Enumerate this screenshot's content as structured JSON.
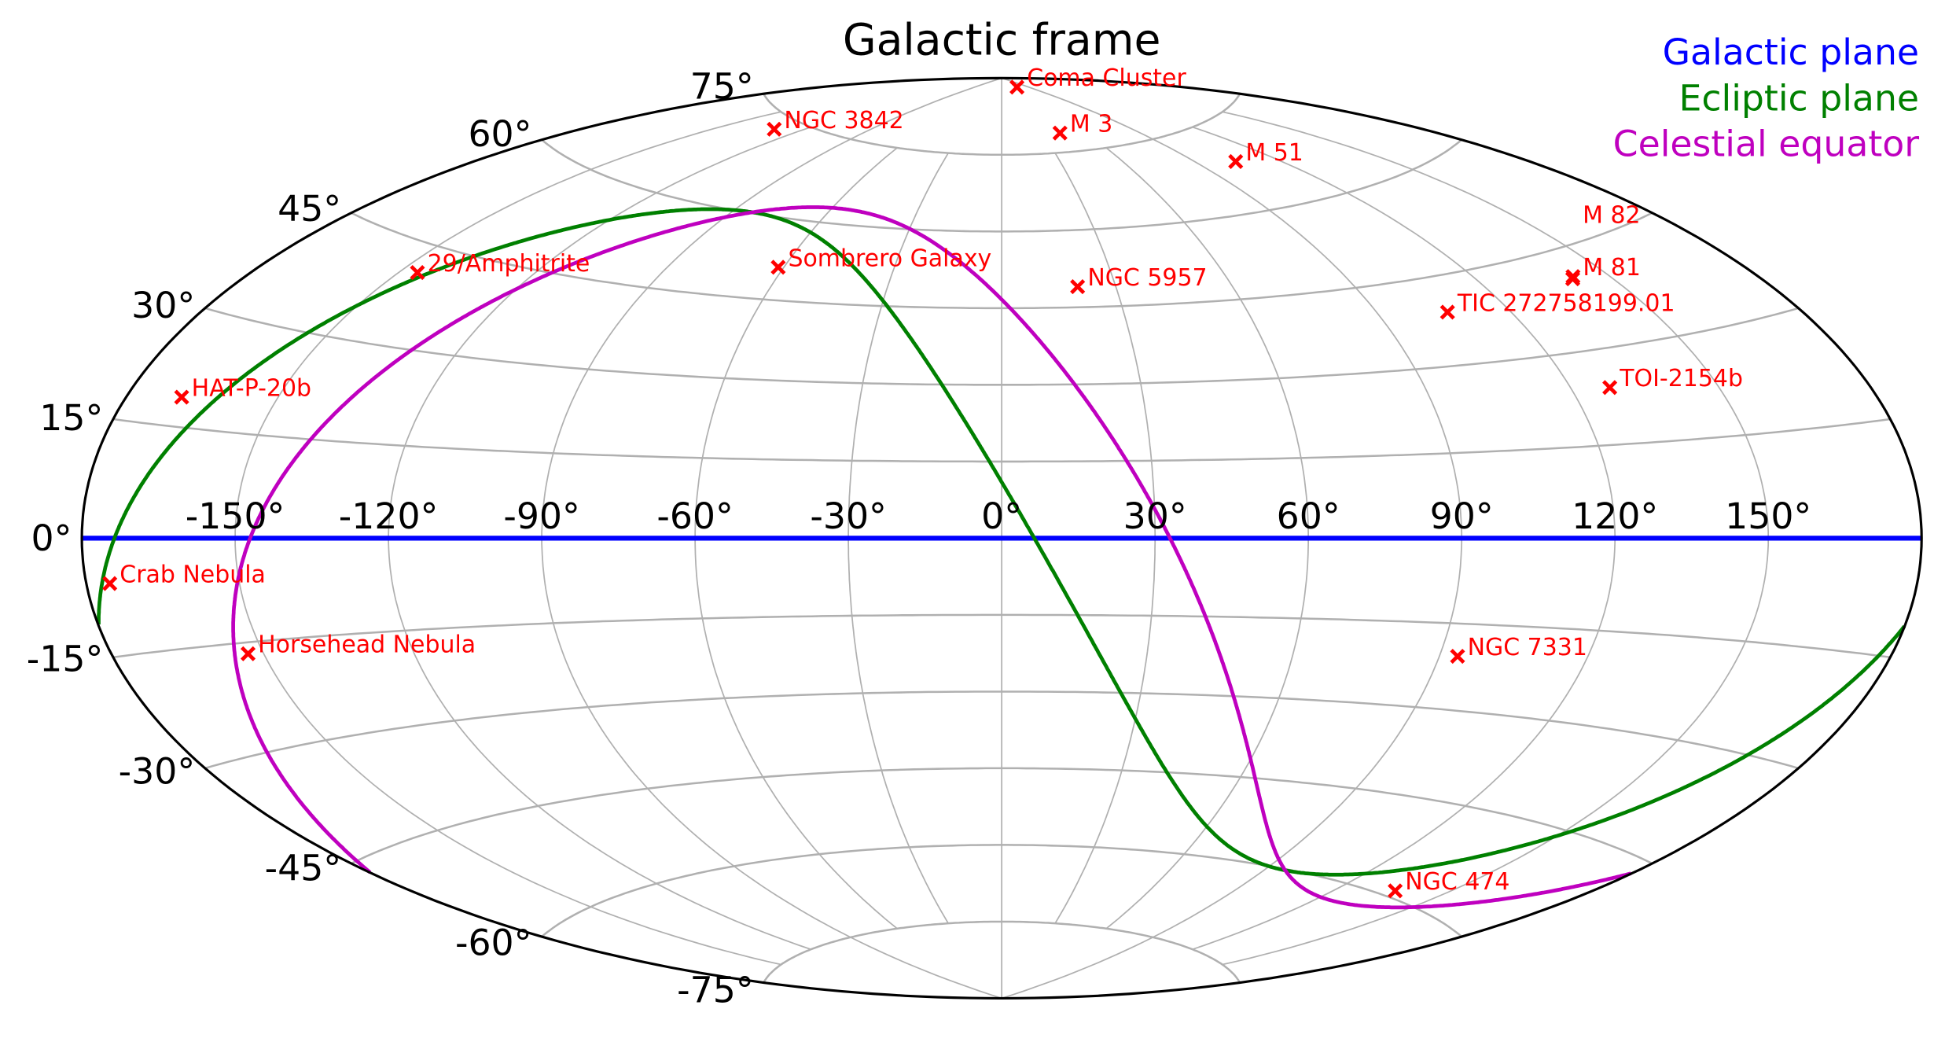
{
  "chart_data": {
    "type": "scatter",
    "projection": "aitoff",
    "title": "Galactic frame",
    "grid": true,
    "legend_placement": "top-right",
    "lon_ticks": [
      "-150°",
      "-120°",
      "-90°",
      "-60°",
      "-30°",
      "0°",
      "30°",
      "60°",
      "90°",
      "120°",
      "150°"
    ],
    "lon_tick_values": [
      -150,
      -120,
      -90,
      -60,
      -30,
      0,
      30,
      60,
      90,
      120,
      150
    ],
    "lat_ticks": [
      "75°",
      "60°",
      "45°",
      "30°",
      "15°",
      "0°",
      "-15°",
      "-30°",
      "-45°",
      "-60°",
      "-75°"
    ],
    "lat_tick_values": [
      75,
      60,
      45,
      30,
      15,
      0,
      -15,
      -30,
      -45,
      -60,
      -75
    ],
    "planes": [
      {
        "name": "Galactic plane",
        "color": "#0000ff",
        "pole_l": 0,
        "pole_b": 90
      },
      {
        "name": "Ecliptic plane",
        "color": "#008000",
        "pole_l": 96.38,
        "pole_b": 29.81
      },
      {
        "name": "Celestial equator",
        "color": "#bf00bf",
        "pole_l": 122.93,
        "pole_b": 27.13
      }
    ],
    "marker_color": "#ff0000",
    "objects": [
      {
        "name": "Coma Cluster",
        "l": 58,
        "b": 88
      },
      {
        "name": "NGC 3842",
        "l": -131,
        "b": 73
      },
      {
        "name": "M 3",
        "l": 42.2,
        "b": 78.7
      },
      {
        "name": "M 51",
        "l": 104.9,
        "b": 68.6
      },
      {
        "name": "29/Amphitrite",
        "l": -146,
        "b": 41
      },
      {
        "name": "Sombrero Galaxy",
        "l": -61.5,
        "b": 51.1
      },
      {
        "name": "NGC 5957",
        "l": 20,
        "b": 49
      },
      {
        "name": "M 81",
        "l": 142.1,
        "b": 40.9
      },
      {
        "name": "M 82",
        "l": 141.4,
        "b": 40.6
      },
      {
        "name": "TIC 272758199.01",
        "l": 106,
        "b": 39
      },
      {
        "name": "TOI-2154b",
        "l": 128,
        "b": 24
      },
      {
        "name": "HAT-P-20b",
        "l": -169.1,
        "b": 18.9
      },
      {
        "name": "Crab Nebula",
        "l": -175.4,
        "b": -5.8
      },
      {
        "name": "Horsehead Nebula",
        "l": -153.1,
        "b": -16.6
      },
      {
        "name": "NGC 7331",
        "l": 93.7,
        "b": -20.7
      },
      {
        "name": "NGC 474",
        "l": 136.5,
        "b": -59
      }
    ]
  }
}
